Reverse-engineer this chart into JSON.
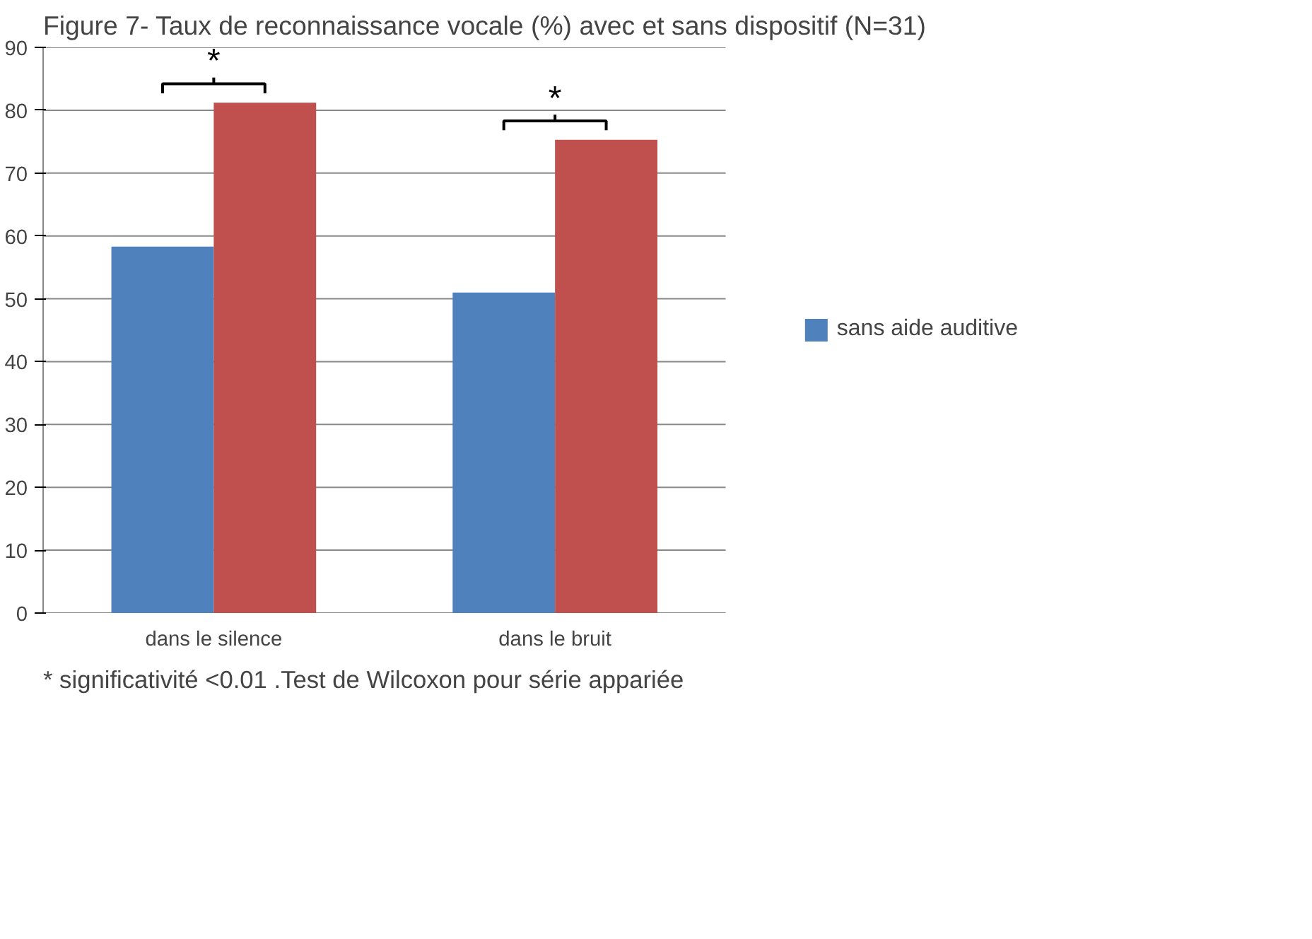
{
  "chart_data": {
    "type": "bar",
    "title": "Figure 7- Taux de reconnaissance vocale (%) avec et sans dispositif (N=31)",
    "categories": [
      "dans le silence",
      "dans le bruit"
    ],
    "series": [
      {
        "name": "sans aide auditive",
        "color": "#4f81bd",
        "values": [
          58.3,
          51
        ]
      },
      {
        "color": "#c0504d",
        "values": [
          81.2,
          75.3
        ]
      }
    ],
    "ylim": [
      0,
      90
    ],
    "yticks": [
      0,
      10,
      20,
      30,
      40,
      50,
      60,
      70,
      80,
      90
    ],
    "grid": "y",
    "legend": "right",
    "annotations": [
      "*",
      "*",
      "* significativité <0.01 .Test de Wilcoxon pour série appariée"
    ]
  }
}
